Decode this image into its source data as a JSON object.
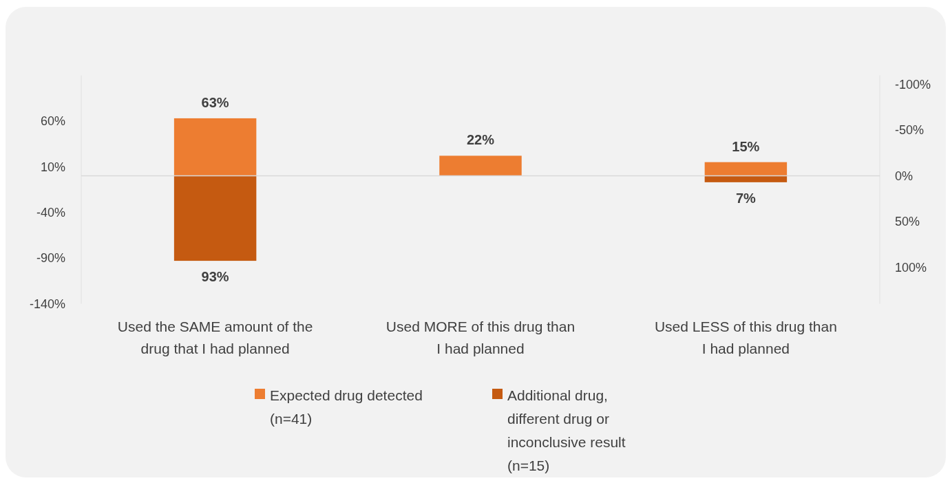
{
  "chart_data": {
    "type": "bar",
    "categories": [
      "Used the SAME amount of the drug that I had planned",
      "Used MORE of this drug than I had planned",
      "Used LESS of this drug than I had planned"
    ],
    "series": [
      {
        "name": "Expected drug detected (n=41)",
        "color": "#ed7d31",
        "values": [
          63,
          22,
          15
        ],
        "value_labels": [
          "63%",
          "22%",
          "15%"
        ]
      },
      {
        "name": "Additional drug, different drug or inconclusive result (n=15)",
        "color": "#c55a11",
        "values": [
          93,
          null,
          7
        ],
        "axis": "y2",
        "value_labels": [
          "93%",
          null,
          "7%"
        ]
      }
    ],
    "ylim": [
      -140,
      110
    ],
    "yticks": [
      {
        "value": 60,
        "label": "60%"
      },
      {
        "value": 10,
        "label": "10%"
      },
      {
        "value": -40,
        "label": "-40%"
      },
      {
        "value": -90,
        "label": "-90%"
      },
      {
        "value": -140,
        "label": "-140%"
      }
    ],
    "y2lim": [
      140,
      -110
    ],
    "y2ticks": [
      {
        "value": -100,
        "label": "-100%"
      },
      {
        "value": -50,
        "label": "-50%"
      },
      {
        "value": 0,
        "label": "0%"
      },
      {
        "value": 50,
        "label": "50%"
      },
      {
        "value": 100,
        "label": "100%"
      }
    ],
    "ref_lines": [
      {
        "axis": "y",
        "value": 0,
        "color": "#d9d9d9"
      }
    ],
    "stacked": true,
    "grid": false,
    "legend": "bottom"
  }
}
